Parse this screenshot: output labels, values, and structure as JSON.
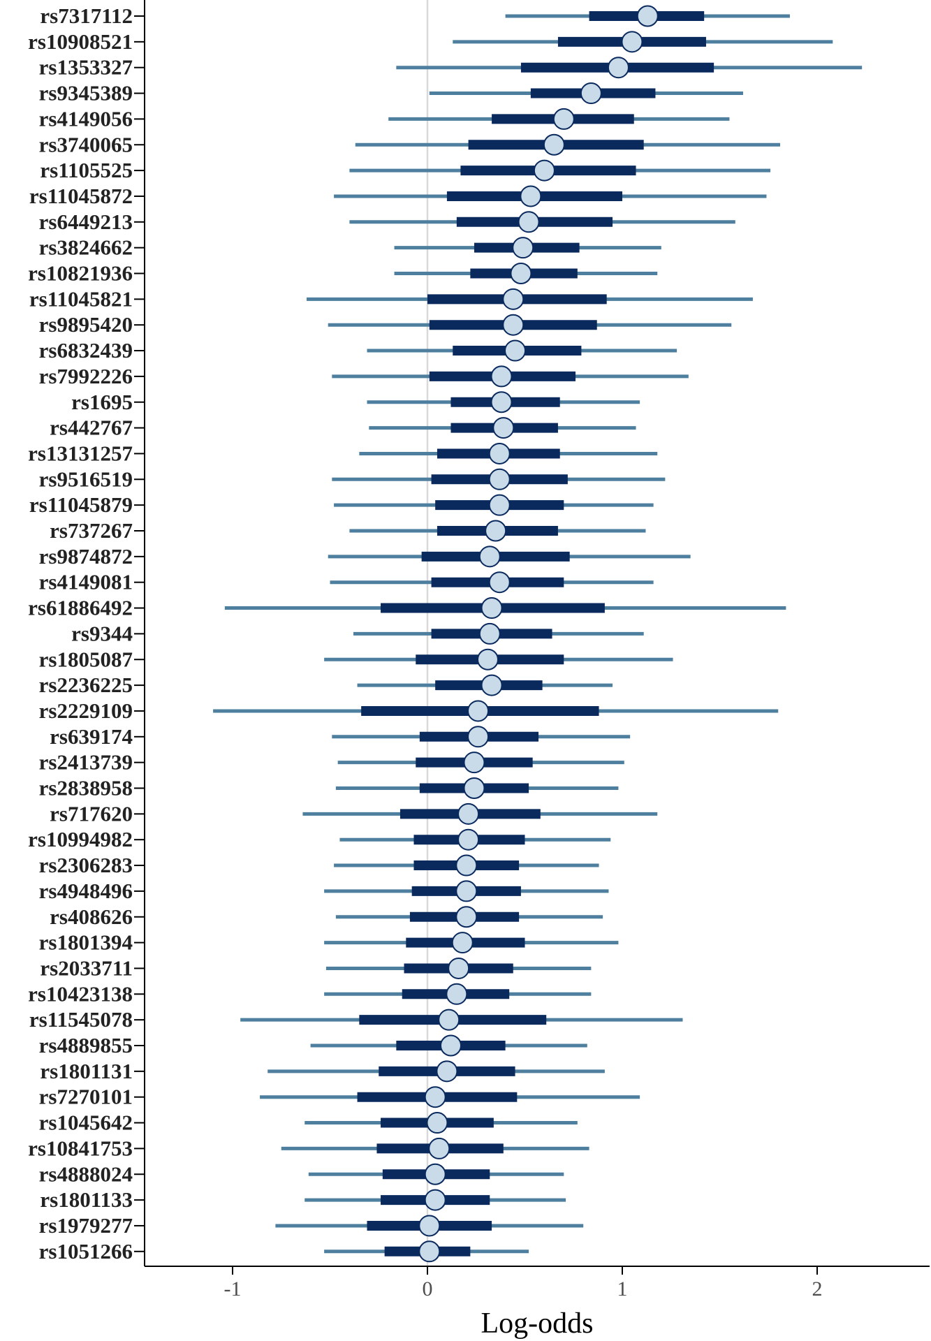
{
  "chart_data": {
    "type": "interval",
    "xlabel": "Log-odds",
    "ylabel": "",
    "xlim": [
      -1.45,
      2.58
    ],
    "xticks": [
      -1,
      0,
      1,
      2
    ],
    "xtick_labels": [
      "-1",
      "0",
      "1",
      "2"
    ],
    "reference_line": 0,
    "grid": false,
    "legend": "none",
    "colors": {
      "outer_interval": "#4e7f9e",
      "inner_interval": "#0a2a5e",
      "point_fill": "#c9dbe9",
      "point_stroke": "#0a2a5e",
      "reference_line": "#d9d9d9",
      "axis": "#000000"
    },
    "series": [
      {
        "label": "rs7317112",
        "estimate": 1.13,
        "inner": [
          0.83,
          1.42
        ],
        "outer": [
          0.4,
          1.86
        ]
      },
      {
        "label": "rs10908521",
        "estimate": 1.05,
        "inner": [
          0.67,
          1.43
        ],
        "outer": [
          0.13,
          2.08
        ]
      },
      {
        "label": "rs1353327",
        "estimate": 0.98,
        "inner": [
          0.48,
          1.47
        ],
        "outer": [
          -0.16,
          2.23
        ]
      },
      {
        "label": "rs9345389",
        "estimate": 0.84,
        "inner": [
          0.53,
          1.17
        ],
        "outer": [
          0.01,
          1.62
        ]
      },
      {
        "label": "rs4149056",
        "estimate": 0.7,
        "inner": [
          0.33,
          1.06
        ],
        "outer": [
          -0.2,
          1.55
        ]
      },
      {
        "label": "rs3740065",
        "estimate": 0.65,
        "inner": [
          0.21,
          1.11
        ],
        "outer": [
          -0.37,
          1.81
        ]
      },
      {
        "label": "rs1105525",
        "estimate": 0.6,
        "inner": [
          0.17,
          1.07
        ],
        "outer": [
          -0.4,
          1.76
        ]
      },
      {
        "label": "rs11045872",
        "estimate": 0.53,
        "inner": [
          0.1,
          1.0
        ],
        "outer": [
          -0.48,
          1.74
        ]
      },
      {
        "label": "rs6449213",
        "estimate": 0.52,
        "inner": [
          0.15,
          0.95
        ],
        "outer": [
          -0.4,
          1.58
        ]
      },
      {
        "label": "rs3824662",
        "estimate": 0.49,
        "inner": [
          0.24,
          0.78
        ],
        "outer": [
          -0.17,
          1.2
        ]
      },
      {
        "label": "rs10821936",
        "estimate": 0.48,
        "inner": [
          0.22,
          0.77
        ],
        "outer": [
          -0.17,
          1.18
        ]
      },
      {
        "label": "rs11045821",
        "estimate": 0.44,
        "inner": [
          0.0,
          0.92
        ],
        "outer": [
          -0.62,
          1.67
        ]
      },
      {
        "label": "rs9895420",
        "estimate": 0.44,
        "inner": [
          0.01,
          0.87
        ],
        "outer": [
          -0.51,
          1.56
        ]
      },
      {
        "label": "rs6832439",
        "estimate": 0.45,
        "inner": [
          0.13,
          0.79
        ],
        "outer": [
          -0.31,
          1.28
        ]
      },
      {
        "label": "rs7992226",
        "estimate": 0.38,
        "inner": [
          0.01,
          0.76
        ],
        "outer": [
          -0.49,
          1.34
        ]
      },
      {
        "label": "rs1695",
        "estimate": 0.38,
        "inner": [
          0.12,
          0.68
        ],
        "outer": [
          -0.31,
          1.09
        ]
      },
      {
        "label": "rs442767",
        "estimate": 0.39,
        "inner": [
          0.12,
          0.67
        ],
        "outer": [
          -0.3,
          1.07
        ]
      },
      {
        "label": "rs13131257",
        "estimate": 0.37,
        "inner": [
          0.05,
          0.68
        ],
        "outer": [
          -0.35,
          1.18
        ]
      },
      {
        "label": "rs9516519",
        "estimate": 0.37,
        "inner": [
          0.02,
          0.72
        ],
        "outer": [
          -0.49,
          1.22
        ]
      },
      {
        "label": "rs11045879",
        "estimate": 0.37,
        "inner": [
          0.04,
          0.7
        ],
        "outer": [
          -0.48,
          1.16
        ]
      },
      {
        "label": "rs737267",
        "estimate": 0.35,
        "inner": [
          0.05,
          0.67
        ],
        "outer": [
          -0.4,
          1.12
        ]
      },
      {
        "label": "rs9874872",
        "estimate": 0.32,
        "inner": [
          -0.03,
          0.73
        ],
        "outer": [
          -0.51,
          1.35
        ]
      },
      {
        "label": "rs4149081",
        "estimate": 0.37,
        "inner": [
          0.02,
          0.7
        ],
        "outer": [
          -0.5,
          1.16
        ]
      },
      {
        "label": "rs61886492",
        "estimate": 0.33,
        "inner": [
          -0.24,
          0.91
        ],
        "outer": [
          -1.04,
          1.84
        ]
      },
      {
        "label": "rs9344",
        "estimate": 0.32,
        "inner": [
          0.02,
          0.64
        ],
        "outer": [
          -0.38,
          1.11
        ]
      },
      {
        "label": "rs1805087",
        "estimate": 0.31,
        "inner": [
          -0.06,
          0.7
        ],
        "outer": [
          -0.53,
          1.26
        ]
      },
      {
        "label": "rs2236225",
        "estimate": 0.33,
        "inner": [
          0.04,
          0.59
        ],
        "outer": [
          -0.36,
          0.95
        ]
      },
      {
        "label": "rs2229109",
        "estimate": 0.26,
        "inner": [
          -0.34,
          0.88
        ],
        "outer": [
          -1.1,
          1.8
        ]
      },
      {
        "label": "rs639174",
        "estimate": 0.26,
        "inner": [
          -0.04,
          0.57
        ],
        "outer": [
          -0.49,
          1.04
        ]
      },
      {
        "label": "rs2413739",
        "estimate": 0.24,
        "inner": [
          -0.06,
          0.54
        ],
        "outer": [
          -0.46,
          1.01
        ]
      },
      {
        "label": "rs2838958",
        "estimate": 0.24,
        "inner": [
          -0.04,
          0.52
        ],
        "outer": [
          -0.47,
          0.98
        ]
      },
      {
        "label": "rs717620",
        "estimate": 0.21,
        "inner": [
          -0.14,
          0.58
        ],
        "outer": [
          -0.64,
          1.18
        ]
      },
      {
        "label": "rs10994982",
        "estimate": 0.21,
        "inner": [
          -0.07,
          0.5
        ],
        "outer": [
          -0.45,
          0.94
        ]
      },
      {
        "label": "rs2306283",
        "estimate": 0.2,
        "inner": [
          -0.07,
          0.47
        ],
        "outer": [
          -0.48,
          0.88
        ]
      },
      {
        "label": "rs4948496",
        "estimate": 0.2,
        "inner": [
          -0.08,
          0.48
        ],
        "outer": [
          -0.53,
          0.93
        ]
      },
      {
        "label": "rs408626",
        "estimate": 0.2,
        "inner": [
          -0.09,
          0.47
        ],
        "outer": [
          -0.47,
          0.9
        ]
      },
      {
        "label": "rs1801394",
        "estimate": 0.18,
        "inner": [
          -0.11,
          0.5
        ],
        "outer": [
          -0.53,
          0.98
        ]
      },
      {
        "label": "rs2033711",
        "estimate": 0.16,
        "inner": [
          -0.12,
          0.44
        ],
        "outer": [
          -0.52,
          0.84
        ]
      },
      {
        "label": "rs10423138",
        "estimate": 0.15,
        "inner": [
          -0.13,
          0.42
        ],
        "outer": [
          -0.53,
          0.84
        ]
      },
      {
        "label": "rs11545078",
        "estimate": 0.11,
        "inner": [
          -0.35,
          0.61
        ],
        "outer": [
          -0.96,
          1.31
        ]
      },
      {
        "label": "rs4889855",
        "estimate": 0.12,
        "inner": [
          -0.16,
          0.4
        ],
        "outer": [
          -0.6,
          0.82
        ]
      },
      {
        "label": "rs1801131",
        "estimate": 0.1,
        "inner": [
          -0.25,
          0.45
        ],
        "outer": [
          -0.82,
          0.91
        ]
      },
      {
        "label": "rs7270101",
        "estimate": 0.04,
        "inner": [
          -0.36,
          0.46
        ],
        "outer": [
          -0.86,
          1.09
        ]
      },
      {
        "label": "rs1045642",
        "estimate": 0.05,
        "inner": [
          -0.24,
          0.34
        ],
        "outer": [
          -0.63,
          0.77
        ]
      },
      {
        "label": "rs10841753",
        "estimate": 0.06,
        "inner": [
          -0.26,
          0.39
        ],
        "outer": [
          -0.75,
          0.83
        ]
      },
      {
        "label": "rs4888024",
        "estimate": 0.04,
        "inner": [
          -0.23,
          0.32
        ],
        "outer": [
          -0.61,
          0.7
        ]
      },
      {
        "label": "rs1801133",
        "estimate": 0.04,
        "inner": [
          -0.24,
          0.32
        ],
        "outer": [
          -0.63,
          0.71
        ]
      },
      {
        "label": "rs1979277",
        "estimate": 0.01,
        "inner": [
          -0.31,
          0.33
        ],
        "outer": [
          -0.78,
          0.8
        ]
      },
      {
        "label": "rs1051266",
        "estimate": 0.01,
        "inner": [
          -0.22,
          0.22
        ],
        "outer": [
          -0.53,
          0.52
        ]
      }
    ]
  }
}
